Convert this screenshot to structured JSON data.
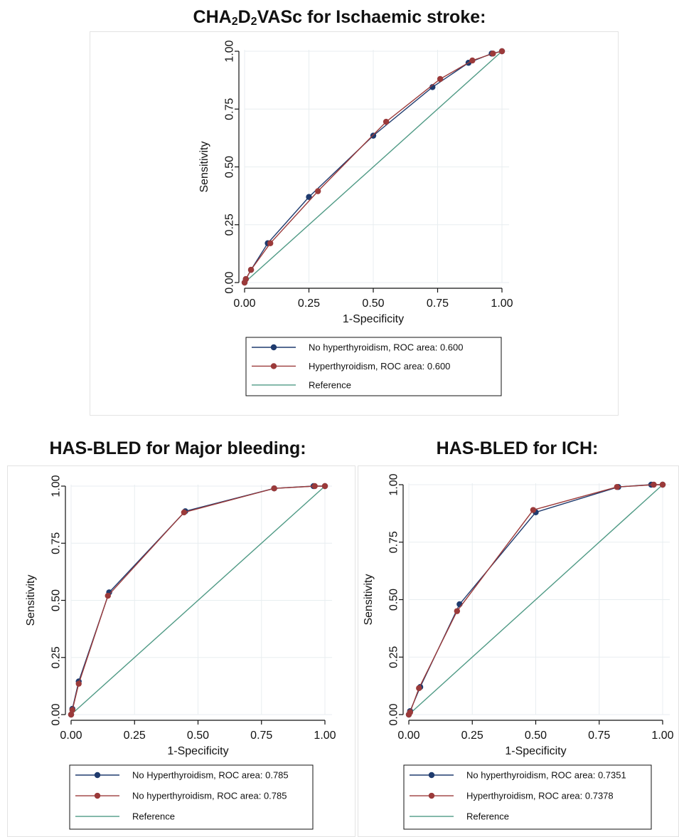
{
  "charts": [
    {
      "title_main": "CHA",
      "title_sub1": "2",
      "title_mid": "D",
      "title_sub2": "2",
      "title_rest": "VASc for Ischaemic stroke:",
      "chart_data": {
        "type": "line",
        "title": "CHA2D2VASc for Ischaemic stroke:",
        "xlabel": "1-Specificity",
        "ylabel": "Sensitivity",
        "xlim": [
          0,
          1
        ],
        "ylim": [
          0,
          1
        ],
        "xticks": [
          "0.00",
          "0.25",
          "0.50",
          "0.75",
          "1.00"
        ],
        "yticks": [
          "0.00",
          "0.25",
          "0.50",
          "0.75",
          "1.00"
        ],
        "grid": true,
        "legend_position": "bottom",
        "series": [
          {
            "name": "No hyperthyroidism, ROC area: 0.600",
            "color": "#1f3b6e",
            "x": [
              0.0,
              0.005,
              0.025,
              0.09,
              0.25,
              0.5,
              0.73,
              0.87,
              0.96,
              1.0
            ],
            "y": [
              0.0,
              0.015,
              0.055,
              0.17,
              0.37,
              0.635,
              0.845,
              0.95,
              0.99,
              1.0
            ]
          },
          {
            "name": "Hyperthyroidism, ROC area: 0.600",
            "color": "#9b3a3a",
            "x": [
              0.0,
              0.005,
              0.025,
              0.1,
              0.285,
              0.55,
              0.76,
              0.885,
              0.965,
              1.0
            ],
            "y": [
              0.0,
              0.015,
              0.055,
              0.17,
              0.395,
              0.695,
              0.88,
              0.96,
              0.99,
              1.0
            ]
          },
          {
            "name": "Reference",
            "color": "#4f9a85",
            "marker": false,
            "x": [
              0,
              1
            ],
            "y": [
              0,
              1
            ]
          }
        ]
      }
    },
    {
      "title": "HAS-BLED for Major bleeding:",
      "chart_data": {
        "type": "line",
        "title": "HAS-BLED for Major bleeding:",
        "xlabel": "1-Specificity",
        "ylabel": "Sensitivity",
        "xlim": [
          0,
          1
        ],
        "ylim": [
          0,
          1
        ],
        "xticks": [
          "0.00",
          "0.25",
          "0.50",
          "0.75",
          "1.00"
        ],
        "yticks": [
          "0.00",
          "0.25",
          "0.50",
          "0.75",
          "1.00"
        ],
        "grid": true,
        "legend_position": "bottom",
        "series": [
          {
            "name": "No Hyperthyroidism, ROC area: 0.785",
            "color": "#1f3b6e",
            "x": [
              0.0,
              0.005,
              0.03,
              0.15,
              0.45,
              0.8,
              0.955,
              1.0
            ],
            "y": [
              0.0,
              0.025,
              0.145,
              0.535,
              0.89,
              0.99,
              1.0,
              1.0
            ]
          },
          {
            "name": "No hyperthyroidism,  ROC area: 0.785",
            "color": "#9b3a3a",
            "x": [
              0.0,
              0.005,
              0.03,
              0.145,
              0.445,
              0.8,
              0.96,
              1.0
            ],
            "y": [
              0.0,
              0.02,
              0.135,
              0.52,
              0.885,
              0.99,
              1.0,
              1.0
            ]
          },
          {
            "name": "Reference",
            "color": "#4f9a85",
            "marker": false,
            "x": [
              0,
              1
            ],
            "y": [
              0,
              1
            ]
          }
        ]
      }
    },
    {
      "title": "HAS-BLED for ICH:",
      "chart_data": {
        "type": "line",
        "title": "HAS-BLED for ICH:",
        "xlabel": "1-Specificity",
        "ylabel": "Sensitivity",
        "xlim": [
          0,
          1
        ],
        "ylim": [
          0,
          1
        ],
        "xticks": [
          "0.00",
          "0.25",
          "0.50",
          "0.75",
          "1.00"
        ],
        "yticks": [
          "0.00",
          "0.25",
          "0.50",
          "0.75",
          "1.00"
        ],
        "grid": true,
        "legend_position": "bottom",
        "series": [
          {
            "name": "No hyperthyroidism, ROC area: 0.7351",
            "color": "#1f3b6e",
            "x": [
              0.0,
              0.005,
              0.045,
              0.2,
              0.5,
              0.825,
              0.955,
              1.0
            ],
            "y": [
              0.0,
              0.015,
              0.12,
              0.48,
              0.88,
              0.99,
              1.0,
              1.0
            ]
          },
          {
            "name": "Hyperthyroidism, ROC area: 0.7378",
            "color": "#9b3a3a",
            "x": [
              0.0,
              0.005,
              0.04,
              0.19,
              0.49,
              0.82,
              0.965,
              1.0
            ],
            "y": [
              0.0,
              0.01,
              0.115,
              0.45,
              0.89,
              0.99,
              1.0,
              1.0
            ]
          },
          {
            "name": "Reference",
            "color": "#4f9a85",
            "marker": false,
            "x": [
              0,
              1
            ],
            "y": [
              0,
              1
            ]
          }
        ]
      }
    }
  ]
}
